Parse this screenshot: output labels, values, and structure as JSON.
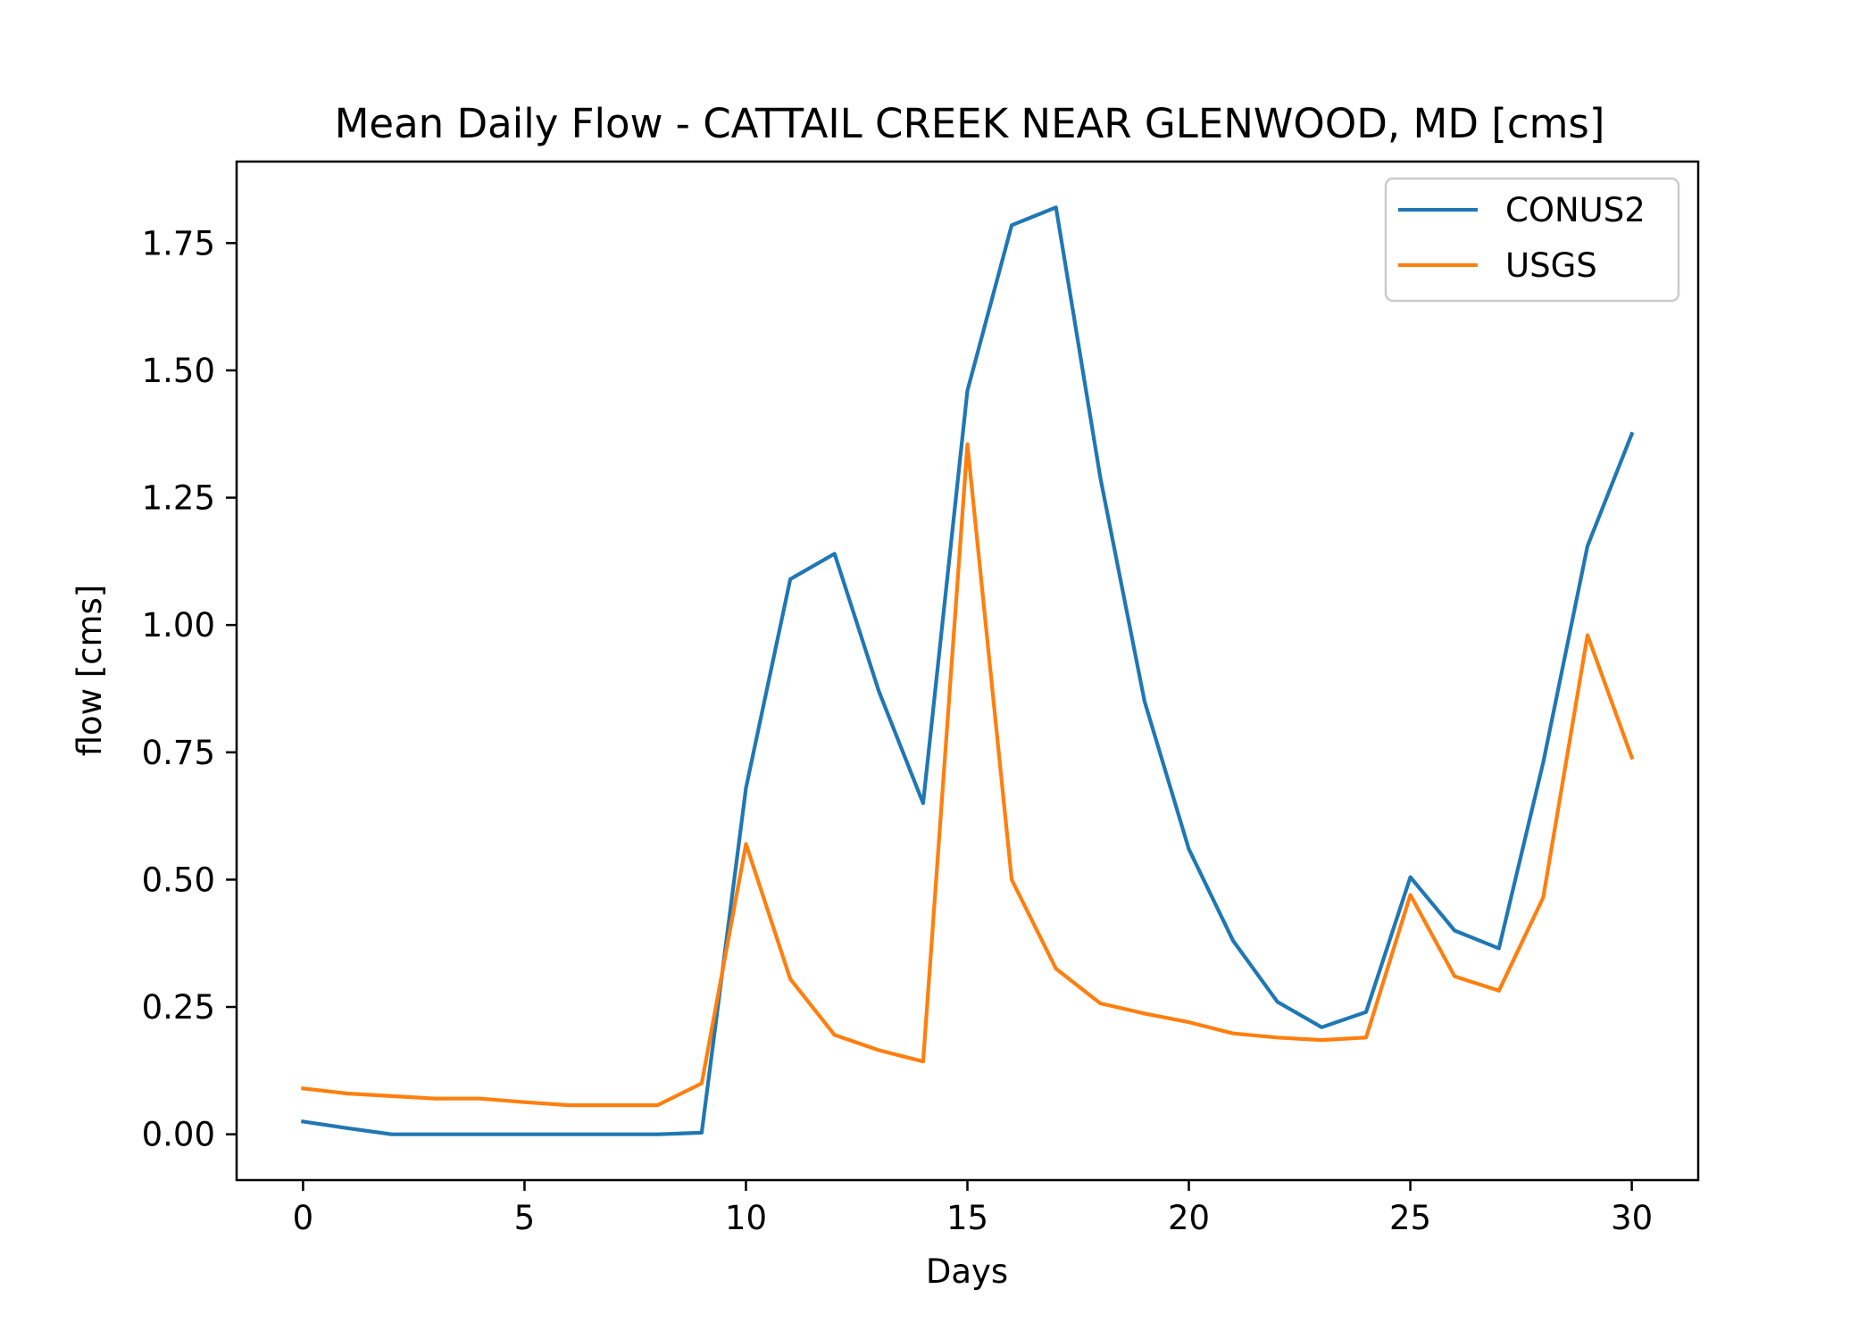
{
  "chart_data": {
    "type": "line",
    "title": "Mean Daily Flow - CATTAIL CREEK NEAR GLENWOOD, MD [cms]",
    "xlabel": "Days",
    "ylabel": "flow [cms]",
    "xlim": [
      -1.5,
      31.5
    ],
    "ylim": [
      -0.09,
      1.91
    ],
    "xticks": [
      0,
      5,
      10,
      15,
      20,
      25,
      30
    ],
    "xtick_labels": [
      "0",
      "5",
      "10",
      "15",
      "20",
      "25",
      "30"
    ],
    "yticks": [
      0,
      0.25,
      0.5,
      0.75,
      1.0,
      1.25,
      1.5,
      1.75
    ],
    "ytick_labels": [
      "0.00",
      "0.25",
      "0.50",
      "0.75",
      "1.00",
      "1.25",
      "1.50",
      "1.75"
    ],
    "grid": false,
    "legend_position": "top-right",
    "x": [
      0,
      1,
      2,
      3,
      4,
      5,
      6,
      7,
      8,
      9,
      10,
      11,
      12,
      13,
      14,
      15,
      16,
      17,
      18,
      19,
      20,
      21,
      22,
      23,
      24,
      25,
      26,
      27,
      28,
      29,
      30
    ],
    "series": [
      {
        "name": "CONUS2",
        "color": "#1f77b4",
        "values": [
          0.025,
          0.012,
          0.0,
          0.0,
          0.0,
          0.0,
          0.0,
          0.0,
          0.0,
          0.003,
          0.68,
          1.09,
          1.14,
          0.87,
          0.65,
          1.46,
          1.785,
          1.82,
          1.29,
          0.85,
          0.56,
          0.38,
          0.26,
          0.21,
          0.24,
          0.505,
          0.4,
          0.365,
          0.73,
          1.155,
          1.375
        ]
      },
      {
        "name": "USGS",
        "color": "#ff7f0e",
        "values": [
          0.09,
          0.08,
          0.075,
          0.07,
          0.07,
          0.063,
          0.057,
          0.057,
          0.057,
          0.1,
          0.57,
          0.305,
          0.195,
          0.165,
          0.143,
          1.355,
          0.5,
          0.325,
          0.257,
          0.237,
          0.22,
          0.198,
          0.19,
          0.185,
          0.19,
          0.47,
          0.31,
          0.282,
          0.465,
          0.98,
          0.74
        ]
      }
    ]
  }
}
